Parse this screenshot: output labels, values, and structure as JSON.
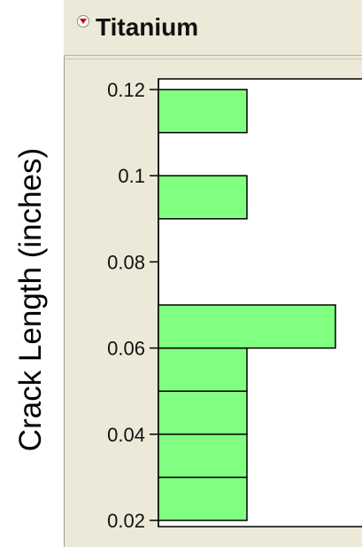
{
  "header": {
    "title": "Titanium",
    "disclosure_icon": "disclosure-triangle-icon"
  },
  "colors": {
    "bar_fill": "#80ff80",
    "panel_bg": "#ece9d8",
    "plot_bg": "#ffffff",
    "disclosure_red": "#d80000"
  },
  "chart_data": {
    "type": "bar",
    "orientation": "horizontal",
    "title": "Titanium",
    "ylabel": "Crack Length (inches)",
    "xlabel": "",
    "ylim": [
      0.02,
      0.12
    ],
    "yticks": [
      "0.12",
      "0.1",
      "0.08",
      "0.06",
      "0.04",
      "0.02"
    ],
    "bin_width": 0.01,
    "bins": [
      {
        "start": 0.02,
        "end": 0.03,
        "count": 1
      },
      {
        "start": 0.03,
        "end": 0.04,
        "count": 1
      },
      {
        "start": 0.04,
        "end": 0.05,
        "count": 1
      },
      {
        "start": 0.05,
        "end": 0.06,
        "count": 1
      },
      {
        "start": 0.06,
        "end": 0.07,
        "count": 2
      },
      {
        "start": 0.09,
        "end": 0.1,
        "count": 1
      },
      {
        "start": 0.11,
        "end": 0.12,
        "count": 1
      }
    ],
    "grid": false,
    "legend": "none"
  }
}
